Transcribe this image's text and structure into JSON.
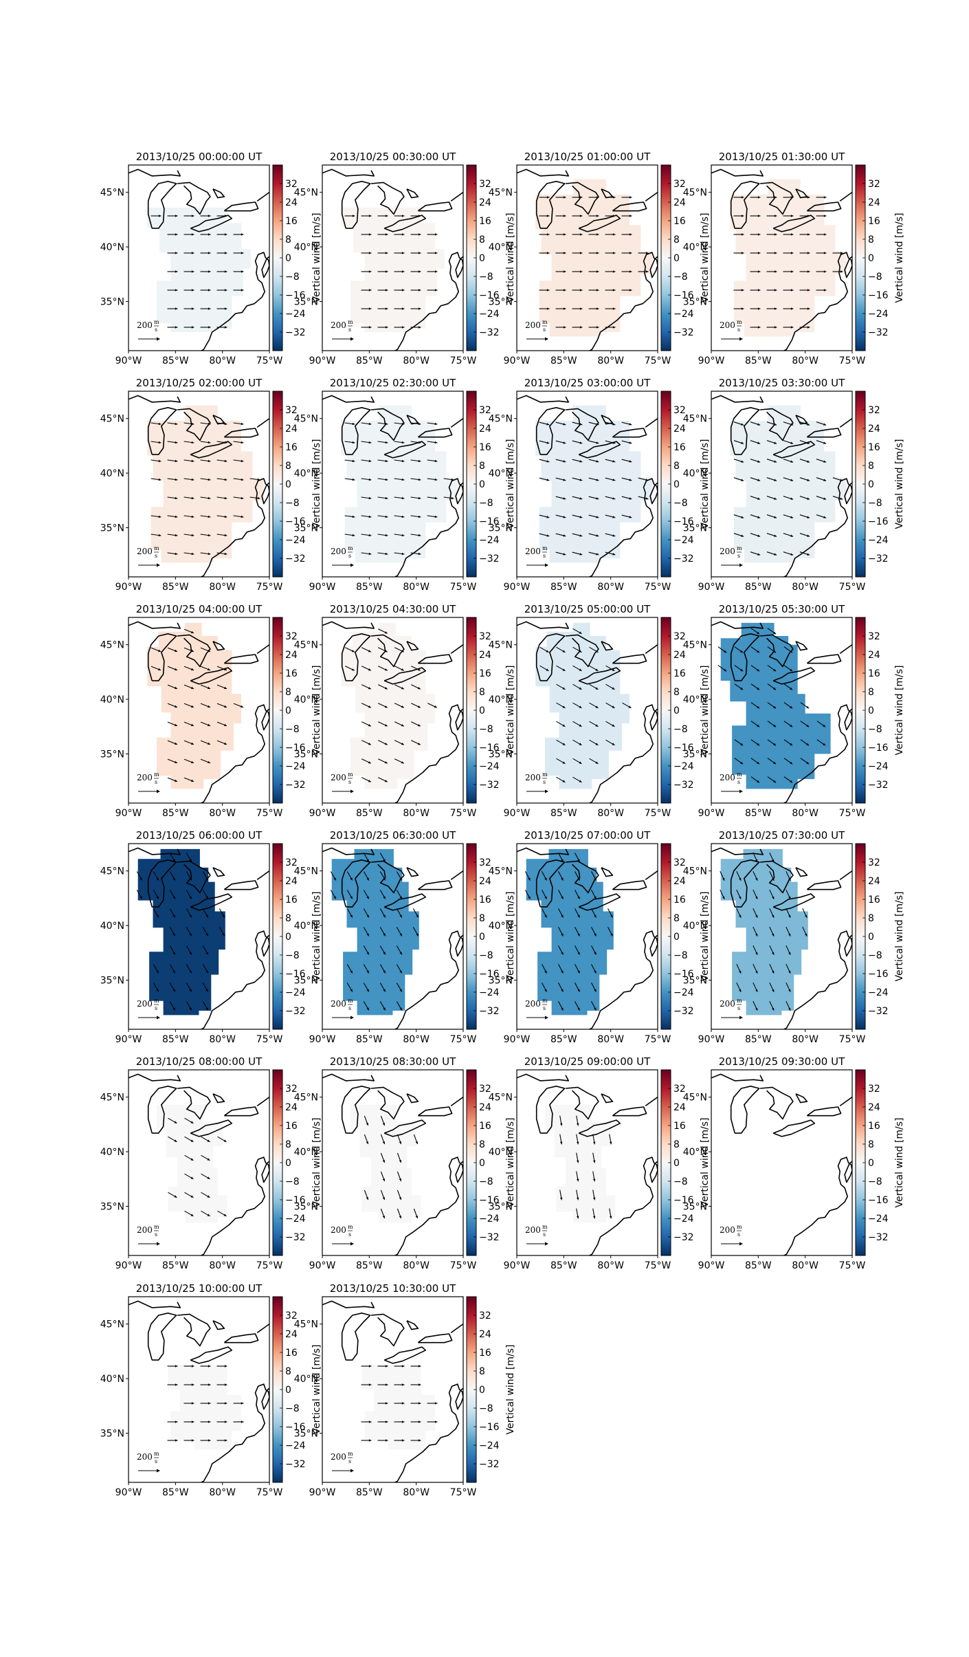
{
  "figure": {
    "colorbar": {
      "label": "Vertical wind [m/s]",
      "ticks": [
        "32",
        "24",
        "16",
        "8",
        "0",
        "−8",
        "−16",
        "−24",
        "−32"
      ]
    },
    "x_tick_labels": [
      "90°W",
      "85°W",
      "80°W",
      "75°W"
    ],
    "y_tick_labels": [
      "45°N",
      "40°N",
      "35°N"
    ],
    "quiver_key": {
      "value": "200",
      "unit_num": "m",
      "unit_den": "s"
    }
  },
  "chart_data": {
    "type": "heatmap",
    "colormap": "RdBu_r",
    "clim": [
      -40,
      40
    ],
    "xlim": [
      -90,
      -75
    ],
    "ylim": [
      30.5,
      47.5
    ],
    "colors": {
      "coast": "#000000",
      "arrow": "#000000"
    },
    "panels": [
      {
        "title": "2013/10/25 00:00:00 UT",
        "vertical_wind": -2,
        "region": "A",
        "vector_dir": 0
      },
      {
        "title": "2013/10/25 00:30:00 UT",
        "vertical_wind": 1,
        "region": "A",
        "vector_dir": 0
      },
      {
        "title": "2013/10/25 01:00:00 UT",
        "vertical_wind": 4,
        "region": "B",
        "vector_dir": 0
      },
      {
        "title": "2013/10/25 01:30:00 UT",
        "vertical_wind": 3,
        "region": "B",
        "vector_dir": 0
      },
      {
        "title": "2013/10/25 02:00:00 UT",
        "vertical_wind": 4,
        "region": "B",
        "vector_dir": -8
      },
      {
        "title": "2013/10/25 02:30:00 UT",
        "vertical_wind": -2,
        "region": "B",
        "vector_dir": -8
      },
      {
        "title": "2013/10/25 03:00:00 UT",
        "vertical_wind": -4,
        "region": "B",
        "vector_dir": -14
      },
      {
        "title": "2013/10/25 03:30:00 UT",
        "vertical_wind": -3,
        "region": "B",
        "vector_dir": -18
      },
      {
        "title": "2013/10/25 04:00:00 UT",
        "vertical_wind": 6,
        "region": "C",
        "vector_dir": -22
      },
      {
        "title": "2013/10/25 04:30:00 UT",
        "vertical_wind": 1,
        "region": "C",
        "vector_dir": -25
      },
      {
        "title": "2013/10/25 05:00:00 UT",
        "vertical_wind": -6,
        "region": "C",
        "vector_dir": -30
      },
      {
        "title": "2013/10/25 05:30:00 UT",
        "vertical_wind": -24,
        "region": "D",
        "vector_dir": -35
      },
      {
        "title": "2013/10/25 06:00:00 UT",
        "vertical_wind": -38,
        "region": "E",
        "vector_dir": -60
      },
      {
        "title": "2013/10/25 06:30:00 UT",
        "vertical_wind": -24,
        "region": "E",
        "vector_dir": -60
      },
      {
        "title": "2013/10/25 07:00:00 UT",
        "vertical_wind": -24,
        "region": "E",
        "vector_dir": -62
      },
      {
        "title": "2013/10/25 07:30:00 UT",
        "vertical_wind": -18,
        "region": "E",
        "vector_dir": -65
      },
      {
        "title": "2013/10/25 08:00:00 UT",
        "vertical_wind": 0,
        "region": "F",
        "vector_dir": -30
      },
      {
        "title": "2013/10/25 08:30:00 UT",
        "vertical_wind": 0,
        "region": "F",
        "vector_dir": -70
      },
      {
        "title": "2013/10/25 09:00:00 UT",
        "vertical_wind": 0,
        "region": "F",
        "vector_dir": -80
      },
      {
        "title": "2013/10/25 09:30:00 UT",
        "vertical_wind": null,
        "region": null,
        "vector_dir": null
      },
      {
        "title": "2013/10/25 10:00:00 UT",
        "vertical_wind": 0,
        "region": "G",
        "vector_dir": 0
      },
      {
        "title": "2013/10/25 10:30:00 UT",
        "vertical_wind": 0,
        "region": "G",
        "vector_dir": 0
      }
    ]
  }
}
